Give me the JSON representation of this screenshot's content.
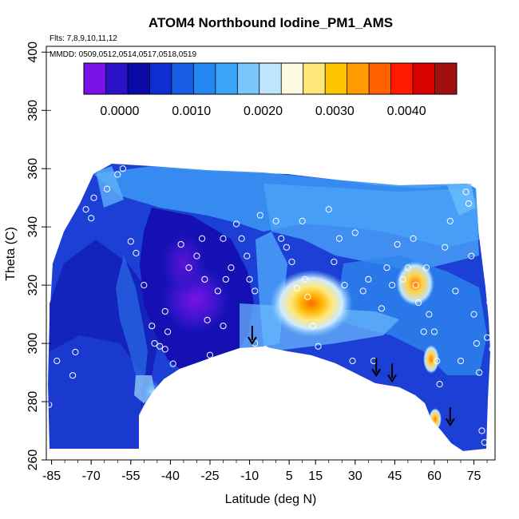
{
  "chart_data": {
    "type": "heatmap",
    "title": "ATOM4 Northbound Iodine_PM1_AMS",
    "flights_label": "Flts: 7,8,9,10,11,12",
    "dates_label": "MMDD: 0509,0512,0514,0517,0518,0519",
    "xlabel": "Latitude (deg N)",
    "ylabel": "Theta (C)",
    "xlim": [
      -87,
      83
    ],
    "ylim": [
      260,
      402
    ],
    "x_ticks": [
      "-85",
      "-70",
      "-55",
      "-40",
      "-25",
      "-10",
      "5",
      "15",
      "30",
      "45",
      "60",
      "75"
    ],
    "y_ticks": [
      "260",
      "280",
      "300",
      "320",
      "340",
      "360",
      "380",
      "400"
    ],
    "colorbar": {
      "range": [
        -0.0005,
        0.0047
      ],
      "tick_labels": [
        "0.0000",
        "0.0010",
        "0.0020",
        "0.0030",
        "0.0040"
      ],
      "colors": [
        "#7a12e6",
        "#2a12c8",
        "#0a0aa8",
        "#0e2ed2",
        "#1a5ee8",
        "#2388f2",
        "#3aa6fa",
        "#78c6fc",
        "#bfe4fc",
        "#fffbe0",
        "#ffe87a",
        "#ffc400",
        "#ff9a00",
        "#ff6200",
        "#ff1a00",
        "#d80000",
        "#a01010"
      ]
    },
    "arrows_x": [
      -9,
      38,
      44,
      66
    ],
    "points": [
      [
        -86,
        328
      ],
      [
        -83,
        294
      ],
      [
        -86,
        279
      ],
      [
        -80,
        345
      ],
      [
        -76,
        297
      ],
      [
        -77,
        289
      ],
      [
        -72,
        346
      ],
      [
        -70,
        343
      ],
      [
        -69,
        350
      ],
      [
        -64,
        353
      ],
      [
        -60,
        358
      ],
      [
        -58,
        360
      ],
      [
        -55,
        335
      ],
      [
        -53,
        331
      ],
      [
        -50,
        320
      ],
      [
        -47,
        306
      ],
      [
        -46,
        300
      ],
      [
        -44,
        299
      ],
      [
        -42,
        298
      ],
      [
        -39,
        293
      ],
      [
        -37,
        289
      ],
      [
        -41,
        304
      ],
      [
        -42,
        311
      ],
      [
        -36,
        334
      ],
      [
        -33,
        326
      ],
      [
        -30,
        330
      ],
      [
        -27,
        322
      ],
      [
        -28,
        336
      ],
      [
        -26,
        308
      ],
      [
        -25,
        296
      ],
      [
        -22,
        318
      ],
      [
        -20,
        306
      ],
      [
        -20,
        336
      ],
      [
        -19,
        322
      ],
      [
        -17,
        326
      ],
      [
        -15,
        341
      ],
      [
        -13,
        336
      ],
      [
        -11,
        330
      ],
      [
        -10,
        322
      ],
      [
        -8,
        318
      ],
      [
        -6,
        344
      ],
      [
        -8,
        300
      ],
      [
        -4,
        298
      ],
      [
        -2,
        296
      ],
      [
        0,
        342
      ],
      [
        2,
        336
      ],
      [
        4,
        333
      ],
      [
        6,
        328
      ],
      [
        8,
        319
      ],
      [
        10,
        342
      ],
      [
        11,
        322
      ],
      [
        12,
        316
      ],
      [
        14,
        306
      ],
      [
        16,
        299
      ],
      [
        18,
        293
      ],
      [
        20,
        346
      ],
      [
        22,
        328
      ],
      [
        24,
        336
      ],
      [
        26,
        320
      ],
      [
        29,
        294
      ],
      [
        30,
        338
      ],
      [
        33,
        318
      ],
      [
        35,
        322
      ],
      [
        37,
        294
      ],
      [
        40,
        312
      ],
      [
        42,
        326
      ],
      [
        44,
        320
      ],
      [
        46,
        334
      ],
      [
        48,
        322
      ],
      [
        50,
        326
      ],
      [
        52,
        336
      ],
      [
        53,
        320
      ],
      [
        54,
        314
      ],
      [
        56,
        304
      ],
      [
        57,
        326
      ],
      [
        58,
        310
      ],
      [
        60,
        304
      ],
      [
        61,
        294
      ],
      [
        62,
        286
      ],
      [
        64,
        333
      ],
      [
        66,
        342
      ],
      [
        68,
        318
      ],
      [
        70,
        294
      ],
      [
        72,
        352
      ],
      [
        73,
        348
      ],
      [
        74,
        330
      ],
      [
        75,
        310
      ],
      [
        76,
        300
      ],
      [
        77,
        290
      ],
      [
        78,
        270
      ],
      [
        79,
        266
      ],
      [
        80,
        302
      ],
      [
        81,
        314
      ],
      [
        82,
        298
      ]
    ]
  }
}
